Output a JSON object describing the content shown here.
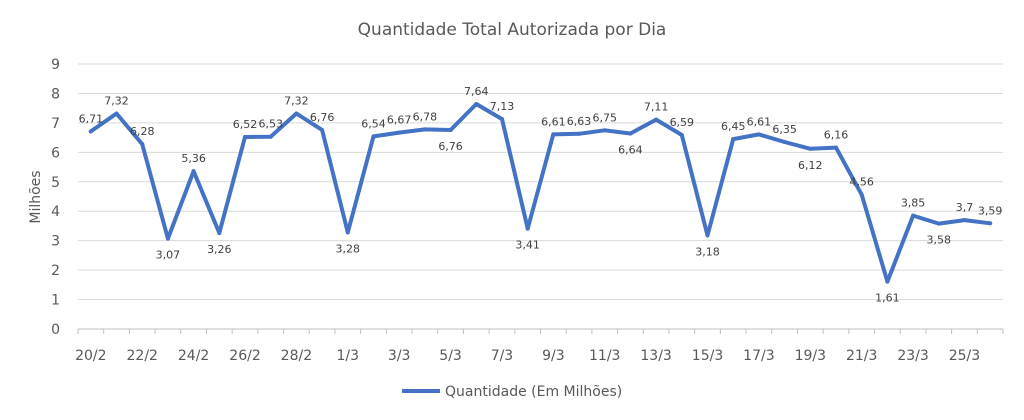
{
  "chart_data": {
    "type": "line",
    "title": "Quantidade Total Autorizada por Dia",
    "ylabel": "Milhões",
    "xlabel": "",
    "ylim": [
      0,
      9
    ],
    "yticks": [
      "0",
      "1",
      "2",
      "3",
      "4",
      "5",
      "6",
      "7",
      "8",
      "9"
    ],
    "grid": true,
    "legend_position": "bottom",
    "color": "#4472C4",
    "x": [
      "20/2",
      "21/2",
      "22/2",
      "23/2",
      "24/2",
      "25/2",
      "26/2",
      "27/2",
      "28/2",
      "29/2",
      "1/3",
      "2/3",
      "3/3",
      "4/3",
      "5/3",
      "6/3",
      "7/3",
      "8/3",
      "9/3",
      "10/3",
      "11/3",
      "12/3",
      "13/3",
      "14/3",
      "15/3",
      "16/3",
      "17/3",
      "18/3",
      "19/3",
      "20/3",
      "21/3",
      "22/3",
      "23/3",
      "24/3",
      "25/3",
      "26/3"
    ],
    "xticks": [
      "20/2",
      "22/2",
      "24/2",
      "26/2",
      "28/2",
      "1/3",
      "3/3",
      "5/3",
      "7/3",
      "9/3",
      "11/3",
      "13/3",
      "15/3",
      "17/3",
      "19/3",
      "21/3",
      "23/3",
      "25/3"
    ],
    "series": [
      {
        "name": "Quantidade (Em Milhões)",
        "values": [
          6.71,
          7.32,
          6.28,
          3.07,
          5.36,
          3.26,
          6.52,
          6.53,
          7.32,
          6.76,
          3.28,
          6.54,
          6.67,
          6.78,
          6.76,
          7.64,
          7.13,
          3.41,
          6.61,
          6.63,
          6.75,
          6.64,
          7.11,
          6.59,
          3.18,
          6.45,
          6.61,
          6.35,
          6.12,
          6.16,
          4.56,
          1.61,
          3.85,
          3.58,
          3.7,
          3.59
        ],
        "labels": [
          "6,71",
          "7,32",
          "6,28",
          "3,07",
          "5,36",
          "3,26",
          "6,52",
          "6,53",
          "7,32",
          "6,76",
          "3,28",
          "6,54",
          "6,67",
          "6,78",
          "6,76",
          "7,64",
          "7,13",
          "3,41",
          "6,61",
          "6,63",
          "6,75",
          "6,64",
          "7,11",
          "6,59",
          "3,18",
          "6,45",
          "6,61",
          "6,35",
          "6,12",
          "6,16",
          "4,56",
          "1,61",
          "3,85",
          "3,58",
          "3,7",
          "3,59"
        ]
      }
    ]
  }
}
